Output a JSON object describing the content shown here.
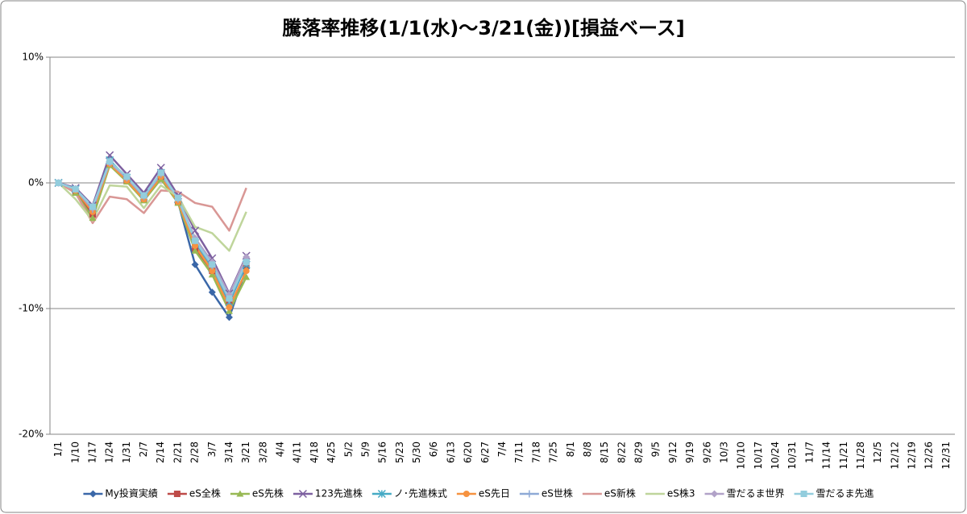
{
  "chart_data": {
    "type": "line",
    "title": "騰落率推移(1/1(水)～3/21(金))[損益ベース]",
    "categories": [
      "1/1",
      "1/10",
      "1/17",
      "1/24",
      "1/31",
      "2/7",
      "2/14",
      "2/21",
      "2/28",
      "3/7",
      "3/14",
      "3/21",
      "3/28",
      "4/4",
      "4/11",
      "4/18",
      "4/25",
      "5/2",
      "5/9",
      "5/16",
      "5/23",
      "5/30",
      "6/6",
      "6/13",
      "6/20",
      "6/27",
      "7/4",
      "7/11",
      "7/18",
      "7/25",
      "8/1",
      "8/8",
      "8/15",
      "8/22",
      "8/29",
      "9/5",
      "9/12",
      "9/19",
      "9/26",
      "10/3",
      "10/10",
      "10/17",
      "10/24",
      "10/31",
      "11/7",
      "11/14",
      "11/21",
      "11/28",
      "12/5",
      "12/12",
      "12/19",
      "12/26",
      "12/31"
    ],
    "ylim": [
      -20,
      10
    ],
    "yticks": [
      {
        "value": -20,
        "label": "-20%"
      },
      {
        "value": -10,
        "label": "-10%"
      },
      {
        "value": 0,
        "label": "0%"
      },
      {
        "value": 10,
        "label": "10%"
      }
    ],
    "grid": true,
    "legend": "bottom",
    "series": [
      {
        "name": "My投資実績",
        "color": "#3A67A8",
        "marker": "diamond",
        "values": [
          0,
          -0.5,
          -2.2,
          1.7,
          0.3,
          -1.2,
          0.7,
          -1.5,
          -6.5,
          -8.7,
          -10.7,
          -6.8,
          null,
          null,
          null,
          null,
          null,
          null,
          null,
          null,
          null,
          null,
          null,
          null,
          null,
          null,
          null,
          null,
          null,
          null,
          null,
          null,
          null,
          null,
          null,
          null,
          null,
          null,
          null,
          null,
          null,
          null,
          null,
          null,
          null,
          null,
          null,
          null,
          null,
          null,
          null,
          null,
          null
        ]
      },
      {
        "name": "eS全株",
        "color": "#BE4B48",
        "marker": "square",
        "values": [
          0,
          -0.7,
          -2.5,
          1.5,
          0.2,
          -1.3,
          0.5,
          -1.5,
          -5.2,
          -7.0,
          -9.5,
          -6.5,
          null,
          null,
          null,
          null,
          null,
          null,
          null,
          null,
          null,
          null,
          null,
          null,
          null,
          null,
          null,
          null,
          null,
          null,
          null,
          null,
          null,
          null,
          null,
          null,
          null,
          null,
          null,
          null,
          null,
          null,
          null,
          null,
          null,
          null,
          null,
          null,
          null,
          null,
          null,
          null,
          null
        ]
      },
      {
        "name": "eS先株",
        "color": "#98B954",
        "marker": "triangle",
        "values": [
          0,
          -0.8,
          -2.8,
          1.4,
          0.1,
          -1.4,
          0.3,
          -1.6,
          -5.4,
          -7.3,
          -10.2,
          -7.5,
          null,
          null,
          null,
          null,
          null,
          null,
          null,
          null,
          null,
          null,
          null,
          null,
          null,
          null,
          null,
          null,
          null,
          null,
          null,
          null,
          null,
          null,
          null,
          null,
          null,
          null,
          null,
          null,
          null,
          null,
          null,
          null,
          null,
          null,
          null,
          null,
          null,
          null,
          null,
          null,
          null
        ]
      },
      {
        "name": "123先進株",
        "color": "#7D60A0",
        "marker": "x",
        "values": [
          0,
          -0.4,
          -1.8,
          2.2,
          0.7,
          -0.8,
          1.2,
          -1.0,
          -3.8,
          -6.0,
          -8.8,
          -5.8,
          null,
          null,
          null,
          null,
          null,
          null,
          null,
          null,
          null,
          null,
          null,
          null,
          null,
          null,
          null,
          null,
          null,
          null,
          null,
          null,
          null,
          null,
          null,
          null,
          null,
          null,
          null,
          null,
          null,
          null,
          null,
          null,
          null,
          null,
          null,
          null,
          null,
          null,
          null,
          null,
          null
        ]
      },
      {
        "name": "ノ･先進株式",
        "color": "#46AAC5",
        "marker": "star",
        "values": [
          0,
          -0.5,
          -2.0,
          1.8,
          0.4,
          -1.1,
          0.8,
          -1.3,
          -4.8,
          -6.8,
          -9.5,
          -6.5,
          null,
          null,
          null,
          null,
          null,
          null,
          null,
          null,
          null,
          null,
          null,
          null,
          null,
          null,
          null,
          null,
          null,
          null,
          null,
          null,
          null,
          null,
          null,
          null,
          null,
          null,
          null,
          null,
          null,
          null,
          null,
          null,
          null,
          null,
          null,
          null,
          null,
          null,
          null,
          null,
          null
        ]
      },
      {
        "name": "eS先日",
        "color": "#F69240",
        "marker": "circle",
        "values": [
          0,
          -0.6,
          -2.3,
          1.5,
          0.2,
          -1.3,
          0.5,
          -1.5,
          -5.0,
          -7.0,
          -9.9,
          -7.0,
          null,
          null,
          null,
          null,
          null,
          null,
          null,
          null,
          null,
          null,
          null,
          null,
          null,
          null,
          null,
          null,
          null,
          null,
          null,
          null,
          null,
          null,
          null,
          null,
          null,
          null,
          null,
          null,
          null,
          null,
          null,
          null,
          null,
          null,
          null,
          null,
          null,
          null,
          null,
          null,
          null
        ]
      },
      {
        "name": "eS世株",
        "color": "#8EA9D6",
        "marker": "plus",
        "values": [
          0,
          -0.5,
          -2.1,
          1.7,
          0.4,
          -1.1,
          0.7,
          -1.3,
          -4.6,
          -6.6,
          -9.3,
          -6.3,
          null,
          null,
          null,
          null,
          null,
          null,
          null,
          null,
          null,
          null,
          null,
          null,
          null,
          null,
          null,
          null,
          null,
          null,
          null,
          null,
          null,
          null,
          null,
          null,
          null,
          null,
          null,
          null,
          null,
          null,
          null,
          null,
          null,
          null,
          null,
          null,
          null,
          null,
          null,
          null,
          null
        ]
      },
      {
        "name": "eS新株",
        "color": "#D99795",
        "marker": "none",
        "values": [
          0,
          -0.8,
          -3.2,
          -1.1,
          -1.3,
          -2.4,
          -0.6,
          -0.7,
          -1.6,
          -1.9,
          -3.8,
          -0.4,
          null,
          null,
          null,
          null,
          null,
          null,
          null,
          null,
          null,
          null,
          null,
          null,
          null,
          null,
          null,
          null,
          null,
          null,
          null,
          null,
          null,
          null,
          null,
          null,
          null,
          null,
          null,
          null,
          null,
          null,
          null,
          null,
          null,
          null,
          null,
          null,
          null,
          null,
          null,
          null,
          null
        ]
      },
      {
        "name": "eS株3",
        "color": "#BFD59B",
        "marker": "none",
        "values": [
          0,
          -1.3,
          -3.0,
          -0.2,
          -0.3,
          -2.0,
          -0.2,
          -1.1,
          -3.5,
          -4.0,
          -5.4,
          -2.3,
          null,
          null,
          null,
          null,
          null,
          null,
          null,
          null,
          null,
          null,
          null,
          null,
          null,
          null,
          null,
          null,
          null,
          null,
          null,
          null,
          null,
          null,
          null,
          null,
          null,
          null,
          null,
          null,
          null,
          null,
          null,
          null,
          null,
          null,
          null,
          null,
          null,
          null,
          null,
          null,
          null
        ]
      },
      {
        "name": "雪だるま世界",
        "color": "#B1A2C8",
        "marker": "diamond",
        "values": [
          0,
          -0.5,
          -2.0,
          1.6,
          0.4,
          -1.0,
          0.8,
          -1.2,
          -4.4,
          -6.3,
          -8.9,
          -5.9,
          null,
          null,
          null,
          null,
          null,
          null,
          null,
          null,
          null,
          null,
          null,
          null,
          null,
          null,
          null,
          null,
          null,
          null,
          null,
          null,
          null,
          null,
          null,
          null,
          null,
          null,
          null,
          null,
          null,
          null,
          null,
          null,
          null,
          null,
          null,
          null,
          null,
          null,
          null,
          null,
          null
        ]
      },
      {
        "name": "雪だるま先進",
        "color": "#93CDDD",
        "marker": "square",
        "values": [
          0,
          -0.5,
          -1.9,
          1.7,
          0.5,
          -1.0,
          0.8,
          -1.2,
          -4.6,
          -6.5,
          -9.2,
          -6.3,
          null,
          null,
          null,
          null,
          null,
          null,
          null,
          null,
          null,
          null,
          null,
          null,
          null,
          null,
          null,
          null,
          null,
          null,
          null,
          null,
          null,
          null,
          null,
          null,
          null,
          null,
          null,
          null,
          null,
          null,
          null,
          null,
          null,
          null,
          null,
          null,
          null,
          null,
          null,
          null,
          null
        ]
      }
    ]
  }
}
